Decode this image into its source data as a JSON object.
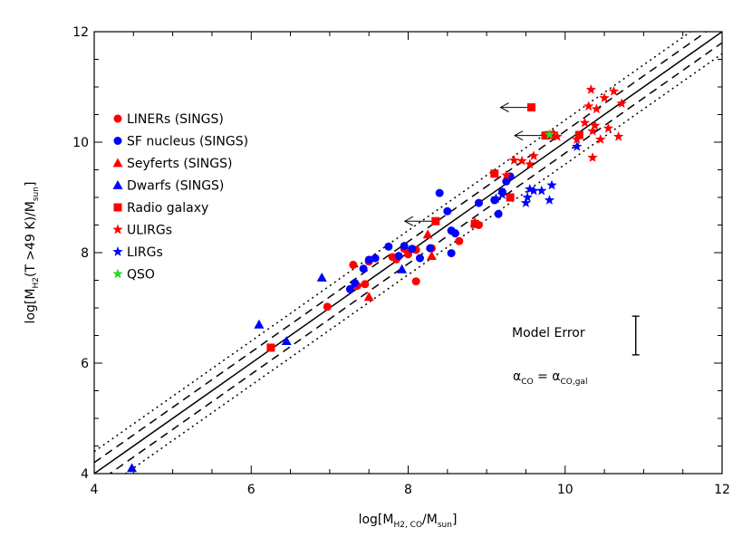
{
  "chart_data": {
    "type": "scatter",
    "xlabel": "log[M",
    "xlabel_sub": "H2, CO",
    "xlabel_tail": "/M",
    "xlabel_sub2": "sun",
    "xlabel_end": "]",
    "ylabel": "log[M",
    "ylabel_sub": "H2",
    "ylabel_mid": "(T >49 K)/M",
    "ylabel_sub2": "sun",
    "ylabel_end": "]",
    "xlim": [
      4,
      12
    ],
    "ylim": [
      4,
      12
    ],
    "xticks": [
      "4",
      "6",
      "8",
      "10",
      "12"
    ],
    "yticks": [
      "4",
      "6",
      "8",
      "10",
      "12"
    ],
    "grid": false,
    "legend_placement": "upper-left",
    "reference_lines": [
      {
        "style": "solid",
        "offset": 0
      },
      {
        "style": "dashed",
        "offset": 0.2
      },
      {
        "style": "dashed",
        "offset": -0.2
      },
      {
        "style": "dotted",
        "offset": 0.4
      },
      {
        "style": "dotted",
        "offset": -0.4
      }
    ],
    "series": [
      {
        "name": "LINERs (SINGS)",
        "marker": "circle",
        "color": "#ff0000",
        "points": [
          [
            6.97,
            7.02
          ],
          [
            7.3,
            7.78
          ],
          [
            7.35,
            7.4
          ],
          [
            7.45,
            7.43
          ],
          [
            7.5,
            7.84
          ],
          [
            7.8,
            7.92
          ],
          [
            7.85,
            7.88
          ],
          [
            7.95,
            8.07
          ],
          [
            8.0,
            7.97
          ],
          [
            8.1,
            7.48
          ],
          [
            8.1,
            8.05
          ],
          [
            8.3,
            8.08
          ],
          [
            8.65,
            8.21
          ],
          [
            8.9,
            8.5
          ]
        ]
      },
      {
        "name": "SF nucleus (SINGS)",
        "marker": "circle",
        "color": "#0000ff",
        "points": [
          [
            7.26,
            7.34
          ],
          [
            7.32,
            7.45
          ],
          [
            7.43,
            7.71
          ],
          [
            7.5,
            7.87
          ],
          [
            7.58,
            7.9
          ],
          [
            7.75,
            8.11
          ],
          [
            7.88,
            7.94
          ],
          [
            7.95,
            8.12
          ],
          [
            8.05,
            8.07
          ],
          [
            8.15,
            7.9
          ],
          [
            8.28,
            8.08
          ],
          [
            8.4,
            9.08
          ],
          [
            8.5,
            8.75
          ],
          [
            8.55,
            7.99
          ],
          [
            8.55,
            8.4
          ],
          [
            8.6,
            8.35
          ],
          [
            8.9,
            8.9
          ],
          [
            9.1,
            8.95
          ],
          [
            9.15,
            8.7
          ],
          [
            9.2,
            9.1
          ],
          [
            9.25,
            9.29
          ],
          [
            9.3,
            9.38
          ]
        ]
      },
      {
        "name": "Seyferts (SINGS)",
        "marker": "triangle",
        "color": "#ff0000",
        "points": [
          [
            7.5,
            7.2
          ],
          [
            8.25,
            8.33
          ],
          [
            8.3,
            7.94
          ],
          [
            8.85,
            8.55
          ]
        ]
      },
      {
        "name": "Dwarfs (SINGS)",
        "marker": "triangle",
        "color": "#0000ff",
        "points": [
          [
            4.48,
            4.1
          ],
          [
            6.1,
            6.7
          ],
          [
            6.45,
            6.4
          ],
          [
            6.9,
            7.55
          ],
          [
            7.92,
            7.7
          ]
        ]
      },
      {
        "name": "Radio galaxy",
        "marker": "square",
        "color": "#ff0000",
        "points": [
          [
            6.25,
            6.28
          ],
          [
            8.35,
            8.57
          ],
          [
            8.85,
            8.52
          ],
          [
            9.1,
            9.43
          ],
          [
            9.3,
            9.0
          ],
          [
            9.57,
            10.63
          ],
          [
            9.75,
            10.12
          ],
          [
            9.82,
            10.13
          ],
          [
            10.18,
            10.13
          ]
        ]
      },
      {
        "name": "ULIRGs",
        "marker": "star",
        "color": "#ff0000",
        "points": [
          [
            9.25,
            9.4
          ],
          [
            9.35,
            9.67
          ],
          [
            9.45,
            9.66
          ],
          [
            9.55,
            9.6
          ],
          [
            9.6,
            9.75
          ],
          [
            9.75,
            10.12
          ],
          [
            9.85,
            10.16
          ],
          [
            9.9,
            10.1
          ],
          [
            10.15,
            10.05
          ],
          [
            10.25,
            10.35
          ],
          [
            10.3,
            10.65
          ],
          [
            10.33,
            10.95
          ],
          [
            10.35,
            10.2
          ],
          [
            10.35,
            9.72
          ],
          [
            10.38,
            10.3
          ],
          [
            10.4,
            10.6
          ],
          [
            10.45,
            10.05
          ],
          [
            10.5,
            10.8
          ],
          [
            10.55,
            10.25
          ],
          [
            10.62,
            10.92
          ],
          [
            10.68,
            10.1
          ],
          [
            10.72,
            10.7
          ]
        ]
      },
      {
        "name": "LIRGs",
        "marker": "star",
        "color": "#0000ff",
        "points": [
          [
            9.12,
            8.98
          ],
          [
            9.2,
            9.05
          ],
          [
            9.5,
            8.9
          ],
          [
            9.52,
            9.0
          ],
          [
            9.55,
            9.15
          ],
          [
            9.6,
            9.12
          ],
          [
            9.7,
            9.12
          ],
          [
            9.8,
            8.95
          ],
          [
            9.83,
            9.22
          ],
          [
            10.15,
            9.92
          ]
        ]
      },
      {
        "name": "QSO",
        "marker": "star",
        "color": "#22dd22",
        "points": [
          [
            9.8,
            10.14
          ]
        ]
      }
    ],
    "upper_limit_arrows": [
      {
        "x": 9.57,
        "y": 10.63
      },
      {
        "x": 9.75,
        "y": 10.12
      },
      {
        "x": 8.35,
        "y": 8.57
      }
    ],
    "model_error": {
      "label": "Model Error",
      "bar_x": 10.9,
      "bar_y_low": 6.15,
      "bar_y_high": 6.85
    },
    "annotation": {
      "alpha_left": "α",
      "alpha_left_sub": "CO",
      "equals": " = ",
      "alpha_right": "α",
      "alpha_right_sub": "CO,gal"
    }
  }
}
